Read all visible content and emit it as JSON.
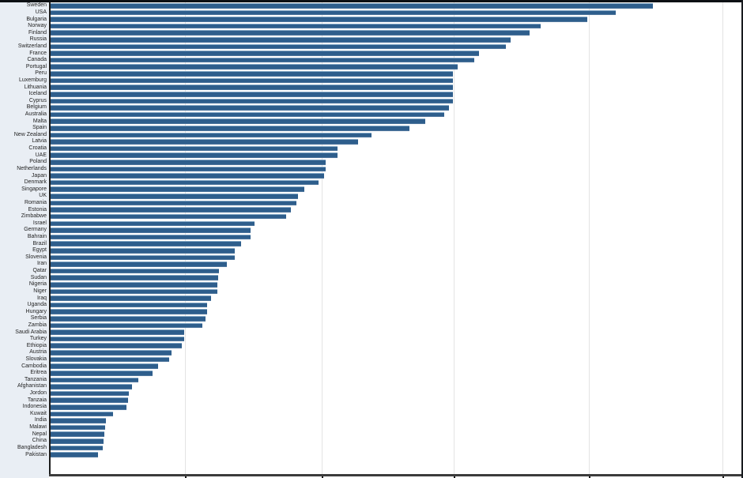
{
  "chart_data": {
    "type": "bar",
    "orientation": "horizontal",
    "title": "",
    "xlabel": "",
    "ylabel": "",
    "legend": "none",
    "grid": "vertical-light",
    "value_axis": {
      "tick_labels_visible": false,
      "min": 0,
      "max": 100,
      "gridline_positions_pct": [
        19.5,
        39.2,
        58.4,
        77.9,
        97.3
      ]
    },
    "categories": [
      "Sweden",
      "USA",
      "Bulgaria",
      "Norway",
      "Finland",
      "Russia",
      "Switzerland",
      "France",
      "Canada",
      "Portugal",
      "Peru",
      "Luxemburg",
      "Lithuania",
      "Iceland",
      "Cyprus",
      "Belgium",
      "Australia",
      "Malta",
      "Spain",
      "New Zealand",
      "Latvia",
      "Croatia",
      "UAE",
      "Poland",
      "Netherlands",
      "Japan",
      "Denmark",
      "Singapore",
      "UK",
      "Romania",
      "Estonia",
      "Zimbabwe",
      "Israel",
      "Germany",
      "Bahrain",
      "Brazil",
      "Egypt",
      "Slovenia",
      "Iran",
      "Qatar",
      "Sudan",
      "Nigeria",
      "Niger",
      "Iraq",
      "Uganda",
      "Hungary",
      "Serbia",
      "Zambia",
      "Saudi Arabia",
      "Turkey",
      "Ethiopia",
      "Austria",
      "Slovakia",
      "Cambodia",
      "Eritrea",
      "Tanzania",
      "Afghanistan",
      "Jordon",
      "Tanzaia",
      "Indonesia",
      "Kuwait",
      "India",
      "Malawi",
      "Nepal",
      "China",
      "Bangladesh",
      "Pakistan"
    ],
    "values": [
      87.2,
      81.8,
      77.7,
      71.0,
      69.4,
      66.7,
      66.0,
      62.1,
      61.4,
      59.0,
      58.3,
      58.3,
      58.3,
      58.3,
      58.3,
      57.8,
      57.1,
      54.3,
      52.1,
      46.6,
      44.6,
      41.7,
      41.7,
      40.0,
      40.0,
      39.7,
      38.9,
      36.9,
      36.0,
      35.7,
      34.9,
      34.2,
      29.7,
      29.1,
      29.1,
      27.7,
      26.8,
      26.8,
      25.7,
      24.5,
      24.4,
      24.3,
      24.3,
      23.4,
      22.8,
      22.8,
      22.6,
      22.1,
      19.5,
      19.5,
      19.2,
      17.7,
      17.4,
      15.8,
      15.0,
      12.9,
      12.0,
      11.5,
      11.4,
      11.2,
      9.2,
      8.2,
      8.1,
      8.0,
      7.9,
      7.8,
      7.1
    ],
    "colors": {
      "bar": "#2e5e8c",
      "bar_edge_light": "#7ea3c2",
      "label_panel_bg": "#e9eef4",
      "plot_bg": "#ffffff",
      "gridline": "#e3e3e3",
      "axis": "#1c1c1c"
    }
  }
}
